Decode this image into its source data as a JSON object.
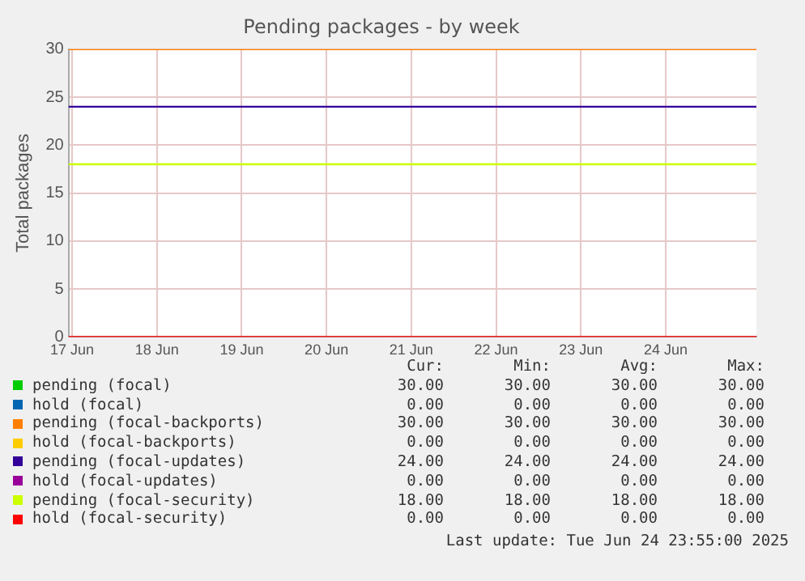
{
  "chart_data": {
    "type": "line",
    "title": "Pending packages - by week",
    "ylabel": "Total packages",
    "x": [
      "2025-06-16T23:00",
      "2025-06-25T01:40"
    ],
    "xlim": [
      "2025-06-16T23:00",
      "2025-06-25T01:40"
    ],
    "xticks": [
      {
        "value": "2025-06-17T00:00",
        "label": "17 Jun"
      },
      {
        "value": "2025-06-18T00:00",
        "label": "18 Jun"
      },
      {
        "value": "2025-06-19T00:00",
        "label": "19 Jun"
      },
      {
        "value": "2025-06-20T00:00",
        "label": "20 Jun"
      },
      {
        "value": "2025-06-21T00:00",
        "label": "21 Jun"
      },
      {
        "value": "2025-06-22T00:00",
        "label": "22 Jun"
      },
      {
        "value": "2025-06-23T00:00",
        "label": "23 Jun"
      },
      {
        "value": "2025-06-24T00:00",
        "label": "24 Jun"
      }
    ],
    "ylim": [
      0,
      30
    ],
    "yticks": [
      0,
      5,
      10,
      15,
      20,
      25,
      30
    ],
    "grid": true,
    "legend": "bottom",
    "marker": "none",
    "series": [
      {
        "name": "pending (focal)",
        "color": "#00cc00",
        "values": [
          null,
          null
        ]
      },
      {
        "name": "hold (focal)",
        "color": "#0066b3",
        "values": [
          null,
          null
        ]
      },
      {
        "name": "pending (focal-backports)",
        "color": "#ff8000",
        "values": [
          30,
          30
        ]
      },
      {
        "name": "hold (focal-backports)",
        "color": "#ffcc00",
        "values": [
          null,
          null
        ]
      },
      {
        "name": "pending (focal-updates)",
        "color": "#330099",
        "values": [
          24,
          24
        ]
      },
      {
        "name": "hold (focal-updates)",
        "color": "#990099",
        "values": [
          null,
          null
        ]
      },
      {
        "name": "pending (focal-security)",
        "color": "#ccff00",
        "values": [
          18,
          18
        ]
      },
      {
        "name": "hold (focal-security)",
        "color": "#ff0000",
        "values": [
          0,
          0
        ]
      }
    ],
    "annotations": [
      "Cur:",
      "Min:",
      "Avg:",
      "Max:",
      "30.00",
      "30.00",
      "30.00",
      "30.00",
      "0.00",
      "0.00",
      "0.00",
      "0.00",
      "30.00",
      "30.00",
      "30.00",
      "30.00",
      "0.00",
      "0.00",
      "0.00",
      "0.00",
      "24.00",
      "24.00",
      "24.00",
      "24.00",
      "0.00",
      "0.00",
      "0.00",
      "0.00",
      "18.00",
      "18.00",
      "18.00",
      "18.00",
      "0.00",
      "0.00",
      "0.00",
      "0.00",
      "Last update: Tue Jun 24 23:55:00 2025"
    ]
  }
}
